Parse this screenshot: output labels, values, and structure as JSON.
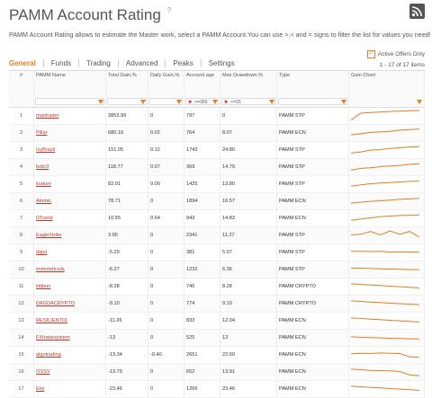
{
  "header": {
    "title": "PAMM Account Rating",
    "help_glyph": "?",
    "description": "PAMM Account Rating allows to estimate the Master work, select a PAMM Account.You can use >,< and = signs to filter the list for values you need!"
  },
  "tabs": [
    "General",
    "Funds",
    "Trading",
    "Advanced",
    "Peaks",
    "Settings"
  ],
  "active_tab": "General",
  "active_offers": {
    "label": "Active Offers Only",
    "checked": true
  },
  "item_count": "1 - 17 of 17 items",
  "columns": [
    {
      "label": "#"
    },
    {
      "label": "PAMM Name"
    },
    {
      "label": "Total Gain,%"
    },
    {
      "label": "Daily Gain,%"
    },
    {
      "label": "Account age",
      "filter": ">=360"
    },
    {
      "label": "Max Drawdown,%",
      "filter": "<=25"
    },
    {
      "label": "Type"
    },
    {
      "label": "Gain Chart"
    }
  ],
  "colors": {
    "accent": "#e67e22",
    "link": "#c0392b"
  },
  "rows": [
    {
      "n": "1",
      "name": "mantrader",
      "total": "3853.99",
      "daily": "0",
      "age": "797",
      "dd": "0",
      "type": "PAMM STP",
      "trend": [
        0.1,
        0.7,
        0.75,
        0.8,
        0.85,
        0.87,
        0.9,
        0.92
      ]
    },
    {
      "n": "2",
      "name": "Pillar",
      "total": "680.16",
      "daily": "0.02",
      "age": "764",
      "dd": "8.07",
      "type": "PAMM ECN",
      "trend": [
        0.3,
        0.4,
        0.5,
        0.55,
        0.6,
        0.7,
        0.75,
        0.8
      ]
    },
    {
      "n": "3",
      "name": "IvyBrazil",
      "total": "151.05",
      "daily": "0.12",
      "age": "1743",
      "dd": "24.80",
      "type": "PAMM STP",
      "trend": [
        0.2,
        0.3,
        0.45,
        0.5,
        0.6,
        0.65,
        0.72,
        0.75
      ]
    },
    {
      "n": "4",
      "name": "bobr3",
      "total": "118.77",
      "daily": "0.07",
      "age": "369",
      "dd": "14.79",
      "type": "PAMM STP",
      "trend": [
        0.2,
        0.35,
        0.4,
        0.5,
        0.55,
        0.6,
        0.7,
        0.75
      ]
    },
    {
      "n": "5",
      "name": "kraken",
      "total": "82.01",
      "daily": "0.00",
      "age": "1425",
      "dd": "13.80",
      "type": "PAMM STP",
      "trend": [
        0.3,
        0.4,
        0.5,
        0.55,
        0.6,
        0.65,
        0.7,
        0.72
      ]
    },
    {
      "n": "6",
      "name": "Atomic",
      "total": "78.71",
      "daily": "0",
      "age": "1894",
      "dd": "16.57",
      "type": "PAMM ECN",
      "trend": [
        0.3,
        0.38,
        0.45,
        0.5,
        0.56,
        0.62,
        0.66,
        0.7
      ]
    },
    {
      "n": "7",
      "name": "DTrend",
      "total": "10.55",
      "daily": "0.64",
      "age": "943",
      "dd": "14.83",
      "type": "PAMM ECN",
      "trend": [
        0.3,
        0.4,
        0.5,
        0.6,
        0.65,
        0.7,
        0.72,
        0.75
      ]
    },
    {
      "n": "8",
      "name": "EagleStrike",
      "total": "3.95",
      "daily": "0",
      "age": "2341",
      "dd": "11.27",
      "type": "PAMM STP",
      "trend": [
        0.5,
        0.55,
        0.8,
        0.5,
        0.85,
        0.55,
        0.8,
        0.3
      ]
    },
    {
      "n": "9",
      "name": "dajur",
      "total": "-5.29",
      "daily": "0",
      "age": "381",
      "dd": "5.97",
      "type": "PAMM STP",
      "trend": [
        0.55,
        0.56,
        0.54,
        0.55,
        0.5,
        0.52,
        0.5,
        0.48
      ]
    },
    {
      "n": "10",
      "name": "invierteficcils",
      "total": "-6.27",
      "daily": "0",
      "age": "1232",
      "dd": "6.36",
      "type": "PAMM STP",
      "trend": [
        0.6,
        0.58,
        0.55,
        0.52,
        0.5,
        0.48,
        0.46,
        0.45
      ]
    },
    {
      "n": "11",
      "name": "kittleer",
      "total": "-8.28",
      "daily": "0",
      "age": "746",
      "dd": "8.28",
      "type": "PAMM CRYPTO",
      "trend": [
        0.7,
        0.65,
        0.6,
        0.55,
        0.5,
        0.45,
        0.4,
        0.35
      ]
    },
    {
      "n": "12",
      "name": "DAGDACRYPTO",
      "total": "-9.10",
      "daily": "0",
      "age": "774",
      "dd": "9.10",
      "type": "PAMM CRYPTO",
      "trend": [
        0.7,
        0.65,
        0.6,
        0.55,
        0.5,
        0.46,
        0.42,
        0.38
      ]
    },
    {
      "n": "13",
      "name": "RESILIENT01",
      "total": "-11.26",
      "daily": "0",
      "age": "833",
      "dd": "12.04",
      "type": "PAMM ECN",
      "trend": [
        0.7,
        0.66,
        0.6,
        0.55,
        0.5,
        0.45,
        0.4,
        0.35
      ]
    },
    {
      "n": "14",
      "name": "FXtradesystem",
      "total": "-13",
      "daily": "0",
      "age": "525",
      "dd": "13",
      "type": "PAMM ECN",
      "trend": [
        0.55,
        0.5,
        0.48,
        0.45,
        0.42,
        0.4,
        0.38,
        0.36
      ]
    },
    {
      "n": "15",
      "name": "algotrading",
      "total": "-13.34",
      "daily": "-0.40",
      "age": "2651",
      "dd": "22.60",
      "type": "PAMM ECN",
      "trend": [
        0.55,
        0.6,
        0.58,
        0.62,
        0.6,
        0.58,
        0.3,
        0.25
      ]
    },
    {
      "n": "16",
      "name": "OSSV",
      "total": "-13.79",
      "daily": "0",
      "age": "652",
      "dd": "13.91",
      "type": "PAMM ECN",
      "trend": [
        0.7,
        0.65,
        0.6,
        0.58,
        0.55,
        0.5,
        0.2,
        0.15
      ]
    },
    {
      "n": "17",
      "name": "Etsi",
      "total": "-23.46",
      "daily": "0",
      "age": "1266",
      "dd": "23.46",
      "type": "PAMM ECN",
      "trend": [
        0.7,
        0.65,
        0.6,
        0.55,
        0.5,
        0.45,
        0.4,
        0.35
      ]
    }
  ]
}
